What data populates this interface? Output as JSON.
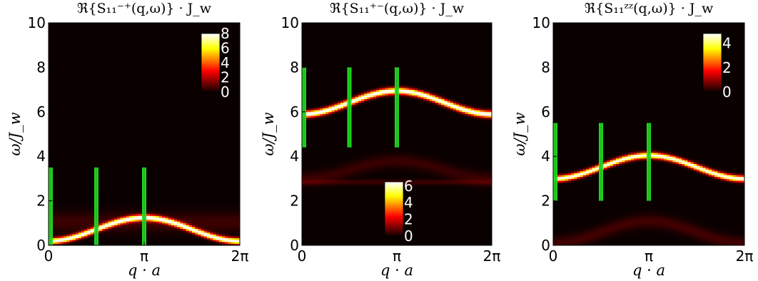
{
  "chart_data": [
    {
      "type": "heatmap",
      "title": "ℜ{S₁₁⁻⁺(q,ω)} · J_w",
      "xlabel": "q · a",
      "ylabel": "ω/J_w",
      "xlim": [
        0,
        6.2832
      ],
      "ylim": [
        0,
        10
      ],
      "x_ticks": [
        "0",
        "π",
        "2π"
      ],
      "y_ticks": [
        "0",
        "2",
        "4",
        "6",
        "8",
        "10"
      ],
      "colormap": "hot",
      "colorbar": {
        "ticks": [
          "0",
          "2",
          "4",
          "6",
          "8"
        ],
        "max": 8,
        "placement": "top-right"
      },
      "bands": [
        {
          "omega0": 0.2,
          "amplitude": 1.05,
          "intensity": 8.5,
          "width": 0.13
        },
        {
          "omega0": 1.05,
          "amplitude": 0.0,
          "intensity": 0.6,
          "width": 0.45
        }
      ],
      "cut_lines": {
        "q": [
          0,
          1.5708,
          3.1416
        ],
        "omega_range": [
          0,
          3.5
        ],
        "color": "#22dd22"
      }
    },
    {
      "type": "heatmap",
      "title": "ℜ{S₁₁⁺⁻(q,ω)} · J_w",
      "xlabel": "q · a",
      "ylabel": "ω/J_w",
      "xlim": [
        0,
        6.2832
      ],
      "ylim": [
        0,
        10
      ],
      "x_ticks": [
        "0",
        "π",
        "2π"
      ],
      "y_ticks": [
        "0",
        "2",
        "4",
        "6",
        "8",
        "10"
      ],
      "colormap": "hot",
      "colorbar": {
        "ticks": [
          "0",
          "2",
          "4",
          "6"
        ],
        "max": 6.5,
        "placement": "bottom-center"
      },
      "bands": [
        {
          "omega0": 5.9,
          "amplitude": 1.05,
          "intensity": 7.0,
          "width": 0.14
        },
        {
          "omega0": 3.0,
          "amplitude": 0.8,
          "intensity": 0.45,
          "width": 0.3
        },
        {
          "omega0": 2.85,
          "amplitude": 0.0,
          "intensity": 0.5,
          "width": 0.12
        }
      ],
      "cut_lines": {
        "q": [
          0,
          1.5708,
          3.1416
        ],
        "omega_range": [
          4.4,
          8.0
        ],
        "color": "#22dd22"
      }
    },
    {
      "type": "heatmap",
      "title": "ℜ{S₁₁ᶻᶻ(q,ω)} · J_w",
      "xlabel": "q · a",
      "ylabel": "ω/J_w",
      "xlim": [
        0,
        6.2832
      ],
      "ylim": [
        0,
        10
      ],
      "x_ticks": [
        "0",
        "π",
        "2π"
      ],
      "y_ticks": [
        "0",
        "2",
        "4",
        "6",
        "8",
        "10"
      ],
      "colormap": "hot",
      "colorbar": {
        "ticks": [
          "0",
          "2",
          "4"
        ],
        "max": 4.8,
        "placement": "top-right"
      },
      "bands": [
        {
          "omega0": 3.0,
          "amplitude": 1.05,
          "intensity": 5.0,
          "width": 0.13
        },
        {
          "omega0": 0.1,
          "amplitude": 1.0,
          "intensity": 0.4,
          "width": 0.3
        }
      ],
      "cut_lines": {
        "q": [
          0,
          1.5708,
          3.1416
        ],
        "omega_range": [
          2.0,
          5.5
        ],
        "color": "#22dd22"
      }
    }
  ]
}
